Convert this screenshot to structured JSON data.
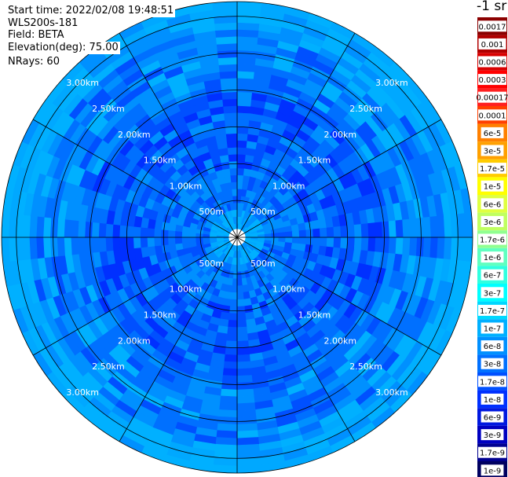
{
  "info": {
    "start_time": "Start time: 2022/02/08 19:48:51",
    "instrument": "WLS200s-181",
    "field": "Field: BETA",
    "elevation": "Elevation(deg): 75.00",
    "nrays": "NRays: 60"
  },
  "colorbar": {
    "unit": "-1 sr",
    "labels": [
      "0.0017",
      "0.001",
      "0.0006",
      "0.0003",
      "0.00017",
      "0.0001",
      "6e-5",
      "3e-5",
      "1.7e-5",
      "1e-5",
      "6e-6",
      "3e-6",
      "1.7e-6",
      "1e-6",
      "6e-7",
      "3e-7",
      "1.7e-7",
      "1e-7",
      "6e-8",
      "3e-8",
      "1.7e-8",
      "1e-8",
      "6e-9",
      "3e-9",
      "1.7e-9",
      "1e-9"
    ],
    "colors": [
      "#8b0000",
      "#b00000",
      "#d80000",
      "#ff0000",
      "#ff2020",
      "#ff4000",
      "#ff8000",
      "#ffa000",
      "#ffcc00",
      "#ffff00",
      "#e0ff40",
      "#c0ff60",
      "#90ff90",
      "#60ffc0",
      "#30ffe0",
      "#00ffff",
      "#00d8ff",
      "#00b0ff",
      "#0090ff",
      "#0070ff",
      "#0050ff",
      "#0030ff",
      "#0018e0",
      "#0000c0",
      "#000090",
      "#000060"
    ]
  },
  "chart_data": {
    "type": "heatmap",
    "projection": "polar (PPI)",
    "nrays": 60,
    "range_labels": [
      "500m",
      "1.00km",
      "1.50km",
      "2.00km",
      "2.50km",
      "3.00km"
    ],
    "range_km": [
      0.5,
      1.0,
      1.5,
      2.0,
      2.5,
      3.0
    ],
    "dominant_colors": {
      "near_field": "#00b0ff",
      "mid_field": "#0070ff",
      "outer_field": "#0090ff",
      "edge": "#00a8ff"
    }
  }
}
